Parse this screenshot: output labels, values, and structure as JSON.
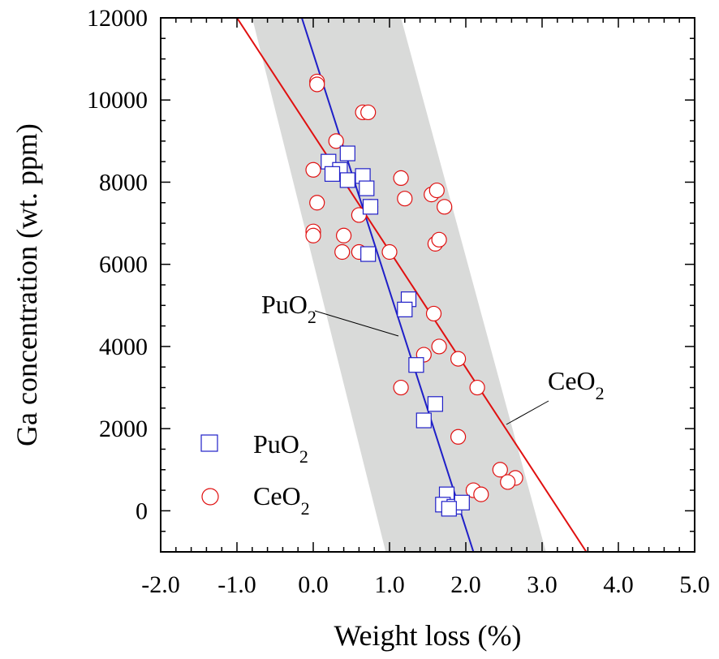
{
  "chart_data": {
    "type": "scatter",
    "xlabel": "Weight loss (%)",
    "ylabel": "Ga concentration (wt. ppm)",
    "xlim": [
      -2.0,
      5.0
    ],
    "ylim": [
      -1000,
      12000
    ],
    "x_ticks": [
      -2.0,
      -1.0,
      0.0,
      1.0,
      2.0,
      3.0,
      4.0,
      5.0
    ],
    "x_tick_labels": [
      "-2.0",
      "-1.0",
      "0.0",
      "1.0",
      "2.0",
      "3.0",
      "4.0",
      "5.0"
    ],
    "y_ticks": [
      0,
      2000,
      4000,
      6000,
      8000,
      10000,
      12000
    ],
    "y_tick_labels": [
      "0",
      "2000",
      "4000",
      "6000",
      "8000",
      "10000",
      "12000"
    ],
    "grid": false,
    "legend_position": "bottom-left",
    "band": {
      "color": "#d9dad9",
      "upper_left_x": -0.8,
      "upper_right_x": 1.15,
      "lower_left_x": 0.95,
      "lower_right_x": 3.05
    },
    "series": [
      {
        "name": "PuO",
        "subscript": "2",
        "marker": "square",
        "color": "#1f1fc8",
        "points": [
          [
            0.2,
            8500
          ],
          [
            0.45,
            8700
          ],
          [
            0.35,
            8300
          ],
          [
            0.25,
            8200
          ],
          [
            0.45,
            8050
          ],
          [
            0.65,
            8150
          ],
          [
            0.7,
            7850
          ],
          [
            0.75,
            7400
          ],
          [
            0.72,
            6250
          ],
          [
            1.25,
            5150
          ],
          [
            1.2,
            4900
          ],
          [
            1.35,
            3550
          ],
          [
            1.6,
            2600
          ],
          [
            1.45,
            2200
          ],
          [
            1.75,
            400
          ],
          [
            1.7,
            150
          ],
          [
            1.85,
            100
          ],
          [
            1.95,
            200
          ],
          [
            1.78,
            50
          ]
        ],
        "fit_line": {
          "x": [
            -0.15,
            2.1
          ],
          "y": [
            12000,
            -1000
          ]
        }
      },
      {
        "name": "CeO",
        "subscript": "2",
        "marker": "circle",
        "color": "#e01010",
        "points": [
          [
            0.05,
            10450
          ],
          [
            0.05,
            10380
          ],
          [
            0.65,
            9700
          ],
          [
            0.72,
            9700
          ],
          [
            0.3,
            9000
          ],
          [
            0.0,
            8300
          ],
          [
            0.05,
            7500
          ],
          [
            0.0,
            6800
          ],
          [
            0.0,
            6700
          ],
          [
            0.4,
            6700
          ],
          [
            0.38,
            6300
          ],
          [
            0.6,
            6300
          ],
          [
            1.0,
            6300
          ],
          [
            0.6,
            7200
          ],
          [
            0.75,
            7400
          ],
          [
            1.15,
            8100
          ],
          [
            1.2,
            7600
          ],
          [
            1.55,
            7700
          ],
          [
            1.62,
            7800
          ],
          [
            1.72,
            7400
          ],
          [
            1.6,
            6500
          ],
          [
            1.65,
            6600
          ],
          [
            1.58,
            4800
          ],
          [
            1.45,
            3800
          ],
          [
            1.65,
            4000
          ],
          [
            1.9,
            3700
          ],
          [
            1.15,
            3000
          ],
          [
            2.15,
            3000
          ],
          [
            1.9,
            1800
          ],
          [
            2.45,
            1000
          ],
          [
            2.65,
            800
          ],
          [
            2.55,
            700
          ],
          [
            2.1,
            500
          ],
          [
            2.2,
            400
          ]
        ],
        "fit_line": {
          "x": [
            -1.0,
            3.58
          ],
          "y": [
            12000,
            -1000
          ]
        }
      }
    ],
    "annotations": [
      {
        "text": "PuO",
        "subscript": "2",
        "target_series": "PuO"
      },
      {
        "text": "CeO",
        "subscript": "2",
        "target_series": "CeO"
      }
    ]
  }
}
